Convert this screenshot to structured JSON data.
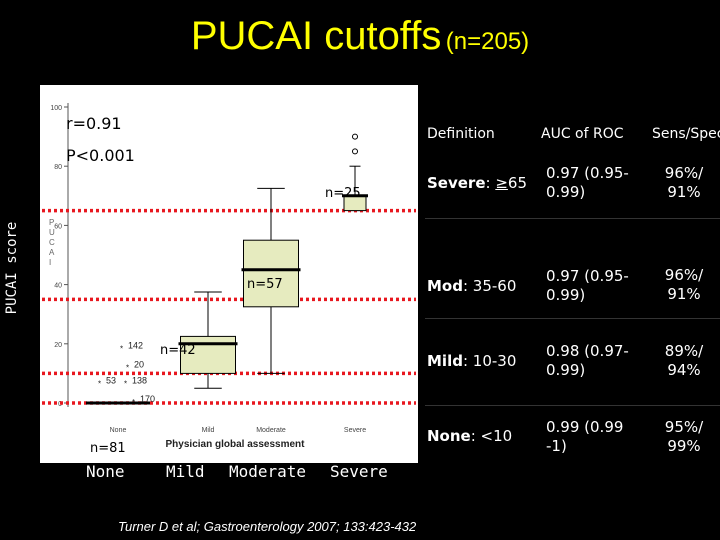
{
  "title": {
    "main": "PUCAI cutoffs",
    "sub": "(n=205)"
  },
  "y_axis_label": "PUCAI score",
  "chart_data": {
    "type": "box",
    "title": "PUCAI cutoffs (n=205)",
    "xlabel": "Physician global assessment",
    "ylabel": "PUCAI score",
    "ylim": [
      0,
      100
    ],
    "yticks": [
      0,
      20,
      40,
      60,
      80,
      100
    ],
    "categories": [
      "None",
      "Mild",
      "Moderate",
      "Severe"
    ],
    "category_labels_large": [
      "None",
      "Mild",
      "Moderate",
      "Severe"
    ],
    "boxes": [
      {
        "category": "None",
        "n_label": "n=81",
        "q1": 0,
        "median": 0,
        "q3": 0,
        "whisker_low": 0,
        "whisker_high": 0
      },
      {
        "category": "Mild",
        "n_label": "n=42",
        "q1": 10,
        "median": 20,
        "q3": 22.5,
        "whisker_low": 5,
        "whisker_high": 37.5
      },
      {
        "category": "Moderate",
        "n_label": "n=57",
        "q1": 32.5,
        "median": 45,
        "q3": 55,
        "whisker_low": 10,
        "whisker_high": 72.5
      },
      {
        "category": "Severe",
        "n_label": "n=25",
        "q1": 65,
        "median": 70,
        "q3": 70,
        "whisker_low": 65,
        "whisker_high": 80
      }
    ],
    "outliers": [
      {
        "category": "None",
        "label": "142",
        "y": 17
      },
      {
        "category": "None",
        "label": "20",
        "y": 12
      },
      {
        "category": "None",
        "label": "53",
        "y": 8
      },
      {
        "category": "None",
        "label": "138",
        "y": 8
      },
      {
        "category": "None",
        "label": "170",
        "y": 3
      },
      {
        "category": "Severe",
        "label": "",
        "y": 85
      },
      {
        "category": "Severe",
        "label": "",
        "y": 90
      }
    ],
    "cutoff_lines": [
      0,
      10,
      35,
      65
    ],
    "statistics": {
      "r": "r=0.91",
      "p": "P<0.001"
    },
    "axis_label_fragment": "PUCAI"
  },
  "table": {
    "headers": [
      "Definition",
      "AUC of ROC",
      "Sens/Spec"
    ],
    "rows": [
      {
        "def_label": "Severe",
        "def_value": ": ",
        "def_sym": "≥",
        "def_num": "65",
        "auc": "0.97 (0.95-0.99)",
        "sens": "96%/ 91%"
      },
      {
        "def_label": "Mod",
        "def_value": ": 35-60",
        "def_sym": "",
        "def_num": "",
        "auc": "0.97 (0.95-0.99)",
        "sens": "96%/ 91%"
      },
      {
        "def_label": "Mild",
        "def_value": ": 10-30",
        "def_sym": "",
        "def_num": "",
        "auc": "0.98 (0.97-0.99)",
        "sens": "89%/ 94%"
      },
      {
        "def_label": "None",
        "def_value": ": <10",
        "def_sym": "",
        "def_num": "",
        "auc": "0.99 (0.99 -1)",
        "sens": "95%/ 99%"
      }
    ]
  },
  "citation": "Turner D et al; Gastroenterology 2007; 133:423-432",
  "colors": {
    "title": "#ffff00",
    "cutoff": "#e8171f",
    "box_fill": "#e6ebbf",
    "background": "#000000"
  }
}
